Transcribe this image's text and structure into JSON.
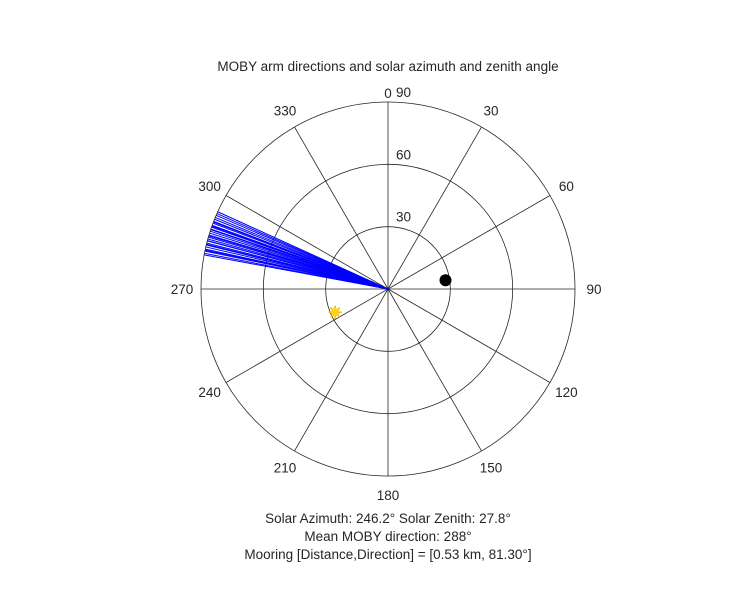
{
  "chart_data": {
    "type": "polar",
    "title": "MOBY arm directions and solar azimuth and zenith angle",
    "theta_direction": "clockwise",
    "theta_zero": "top",
    "theta_ticks": [
      "0",
      "30",
      "60",
      "90",
      "120",
      "150",
      "180",
      "210",
      "240",
      "270",
      "300",
      "330"
    ],
    "theta_tick_degrees": [
      0,
      30,
      60,
      90,
      120,
      150,
      180,
      210,
      240,
      270,
      300,
      330
    ],
    "r_ticks": [
      "30",
      "60",
      "90"
    ],
    "r_tick_values": [
      30,
      60,
      90
    ],
    "rlim": [
      0,
      90
    ],
    "grid": true,
    "series": [
      {
        "kind": "lines",
        "color": "#0000ff",
        "r": 90,
        "theta_degrees": [
          280.5,
          281.0,
          281.7,
          282.3,
          283.0,
          283.6,
          284.2,
          284.9,
          285.5,
          286.1,
          286.8,
          287.4,
          288.0,
          288.7,
          289.3,
          289.9,
          290.6,
          291.2,
          291.9,
          292.5,
          293.2,
          293.8,
          294.4,
          282.0,
          285.0,
          288.5,
          291.0,
          286.5,
          283.8,
          289.6
        ]
      },
      {
        "kind": "marker",
        "color": "#000000",
        "marker": "filled-circle",
        "theta_degrees": 81.3,
        "r": 28
      },
      {
        "kind": "marker",
        "color": "#ffd21f",
        "marker": "sun-star",
        "theta_degrees": 246.2,
        "r": 27.8
      }
    ]
  },
  "info": {
    "line1": "Solar Azimuth: 246.2°    Solar Zenith: 27.8°",
    "line2": "Mean MOBY direction: 288°",
    "line3": "Mooring [Distance,Direction] = [0.53 km, 81.30°]"
  }
}
